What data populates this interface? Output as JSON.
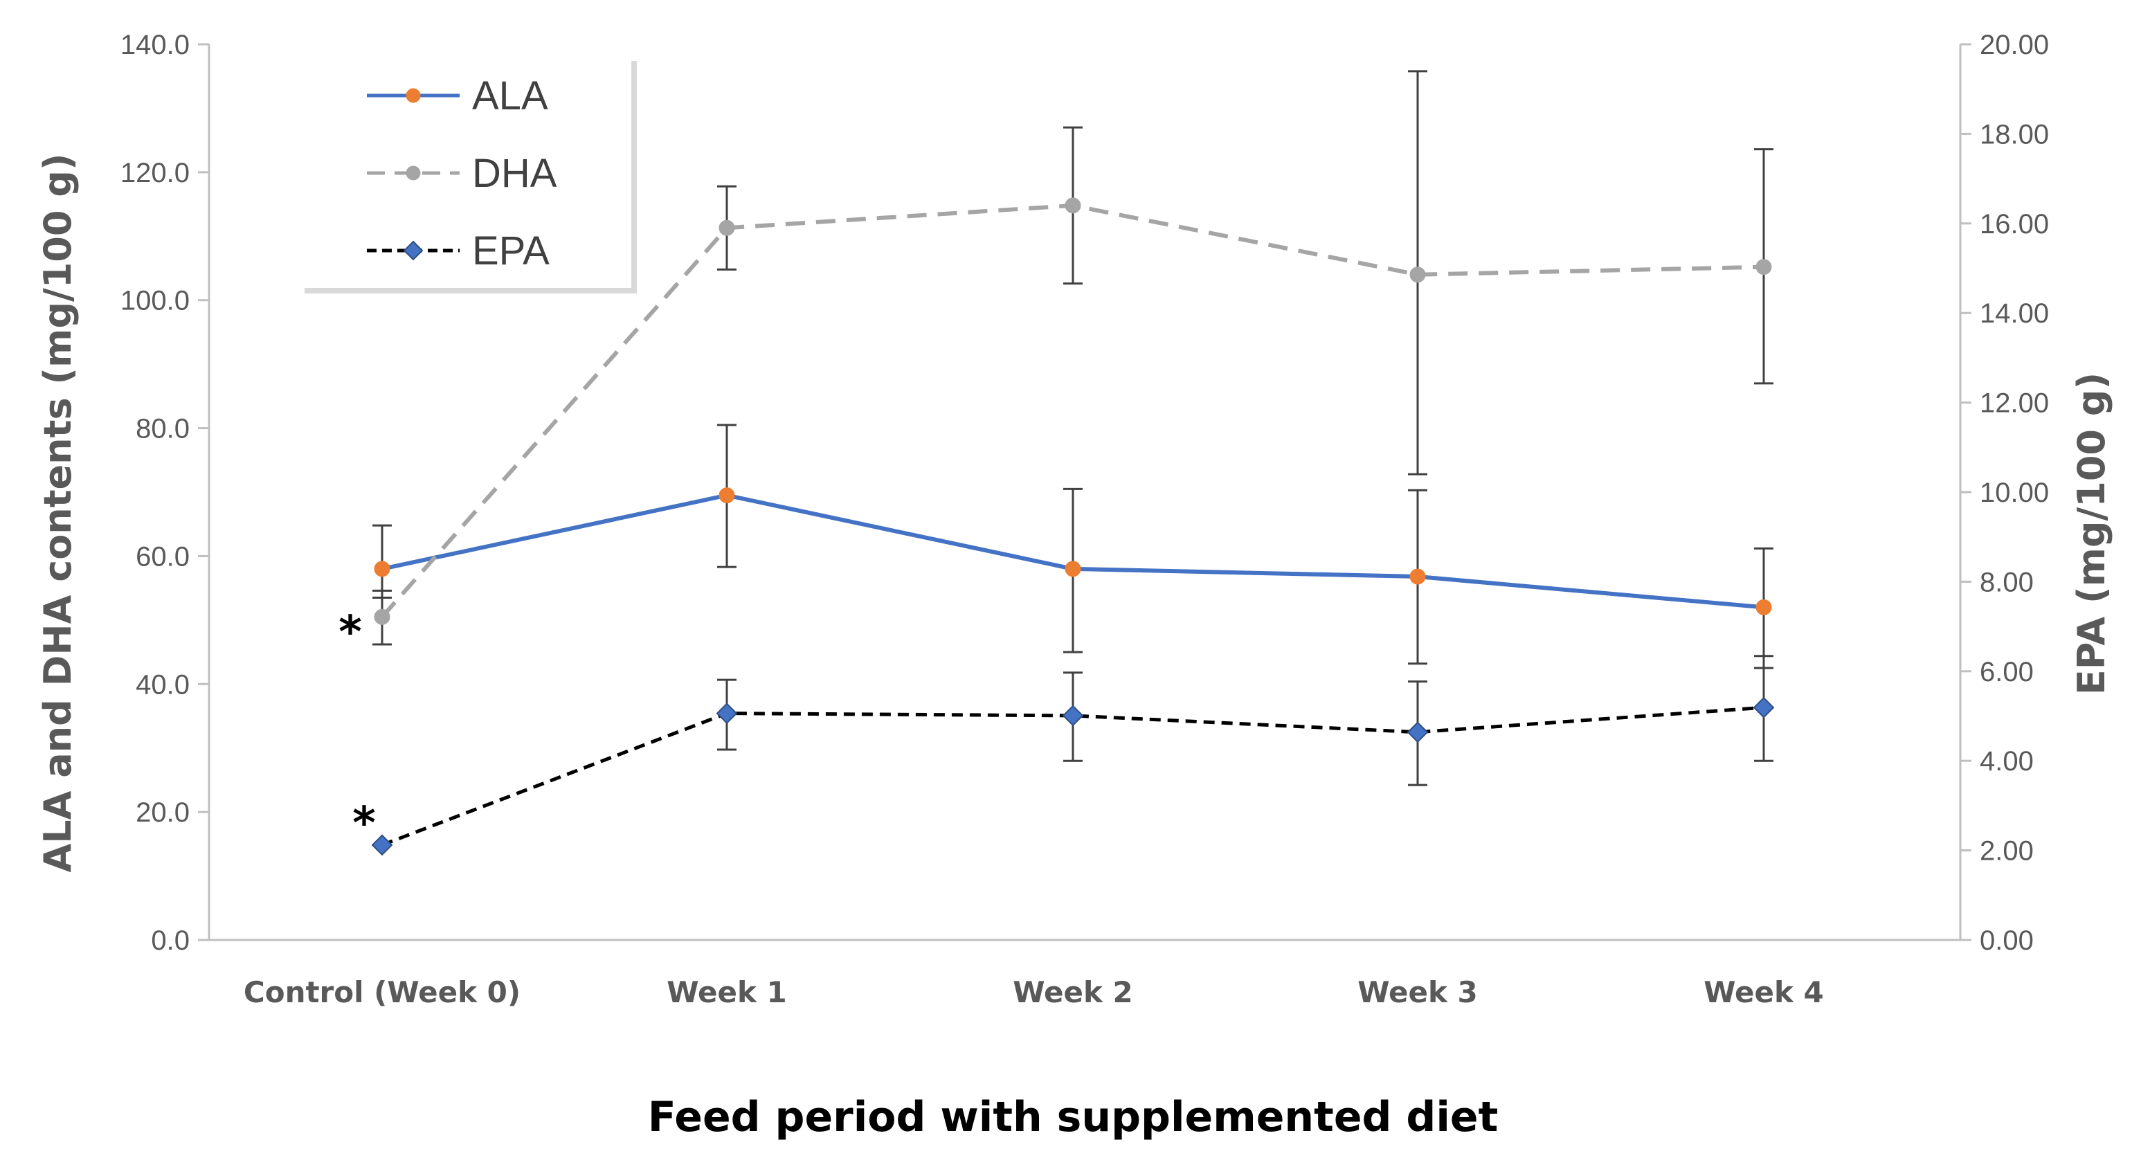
{
  "chart_data": {
    "type": "line",
    "title": "",
    "xlabel": "Feed period with supplemented diet",
    "ylabel_left": "ALA and DHA contents (mg/100 g)",
    "ylabel_right": "EPA (mg/100 g)",
    "categories": [
      "Control (Week 0)",
      "Week 1",
      "Week 2",
      "Week 3",
      "Week 4"
    ],
    "ylim_left": [
      0,
      140
    ],
    "ylim_right": [
      0,
      20
    ],
    "yticks_left": [
      "0.0",
      "20.0",
      "40.0",
      "60.0",
      "80.0",
      "100.0",
      "120.0",
      "140.0"
    ],
    "yticks_right": [
      "0.00",
      "2.00",
      "4.00",
      "6.00",
      "8.00",
      "10.00",
      "12.00",
      "14.00",
      "16.00",
      "18.00",
      "20.00"
    ],
    "series": [
      {
        "name": "ALA",
        "axis": "left",
        "values": [
          58.0,
          69.5,
          58.0,
          56.8,
          52.0
        ],
        "err_low": [
          53.5,
          58.3,
          45.0,
          43.2,
          42.5
        ],
        "err_high": [
          64.8,
          80.5,
          70.5,
          70.3,
          61.2
        ],
        "line_color": "#4472C4",
        "marker_color": "#ED7D31",
        "dash": "solid",
        "marker": "circle"
      },
      {
        "name": "DHA",
        "axis": "left",
        "values": [
          50.5,
          111.3,
          114.8,
          104.0,
          105.2
        ],
        "err_low": [
          46.2,
          104.8,
          102.6,
          72.8,
          87.0
        ],
        "err_high": [
          54.6,
          117.8,
          127.0,
          135.8,
          123.6
        ],
        "line_color": "#A5A5A5",
        "marker_color": "#A5A5A5",
        "dash": "dashed",
        "marker": "circle"
      },
      {
        "name": "EPA",
        "axis": "right",
        "values": [
          2.12,
          5.06,
          5.01,
          4.64,
          5.19
        ],
        "err_low": [
          2.12,
          4.25,
          4.0,
          3.46,
          4.0
        ],
        "err_high": [
          2.12,
          5.81,
          5.97,
          5.77,
          6.34
        ],
        "line_color": "#000000",
        "marker_color": "#4472C4",
        "dash": "dashed",
        "marker": "diamond"
      }
    ],
    "annotations": [
      {
        "text": "*",
        "category": "Control (Week 0)",
        "series": "DHA"
      },
      {
        "text": "*",
        "category": "Control (Week 0)",
        "series": "EPA"
      }
    ],
    "legend": {
      "position": "top-left",
      "entries": [
        "ALA",
        "DHA",
        "EPA"
      ]
    },
    "grid": false
  }
}
